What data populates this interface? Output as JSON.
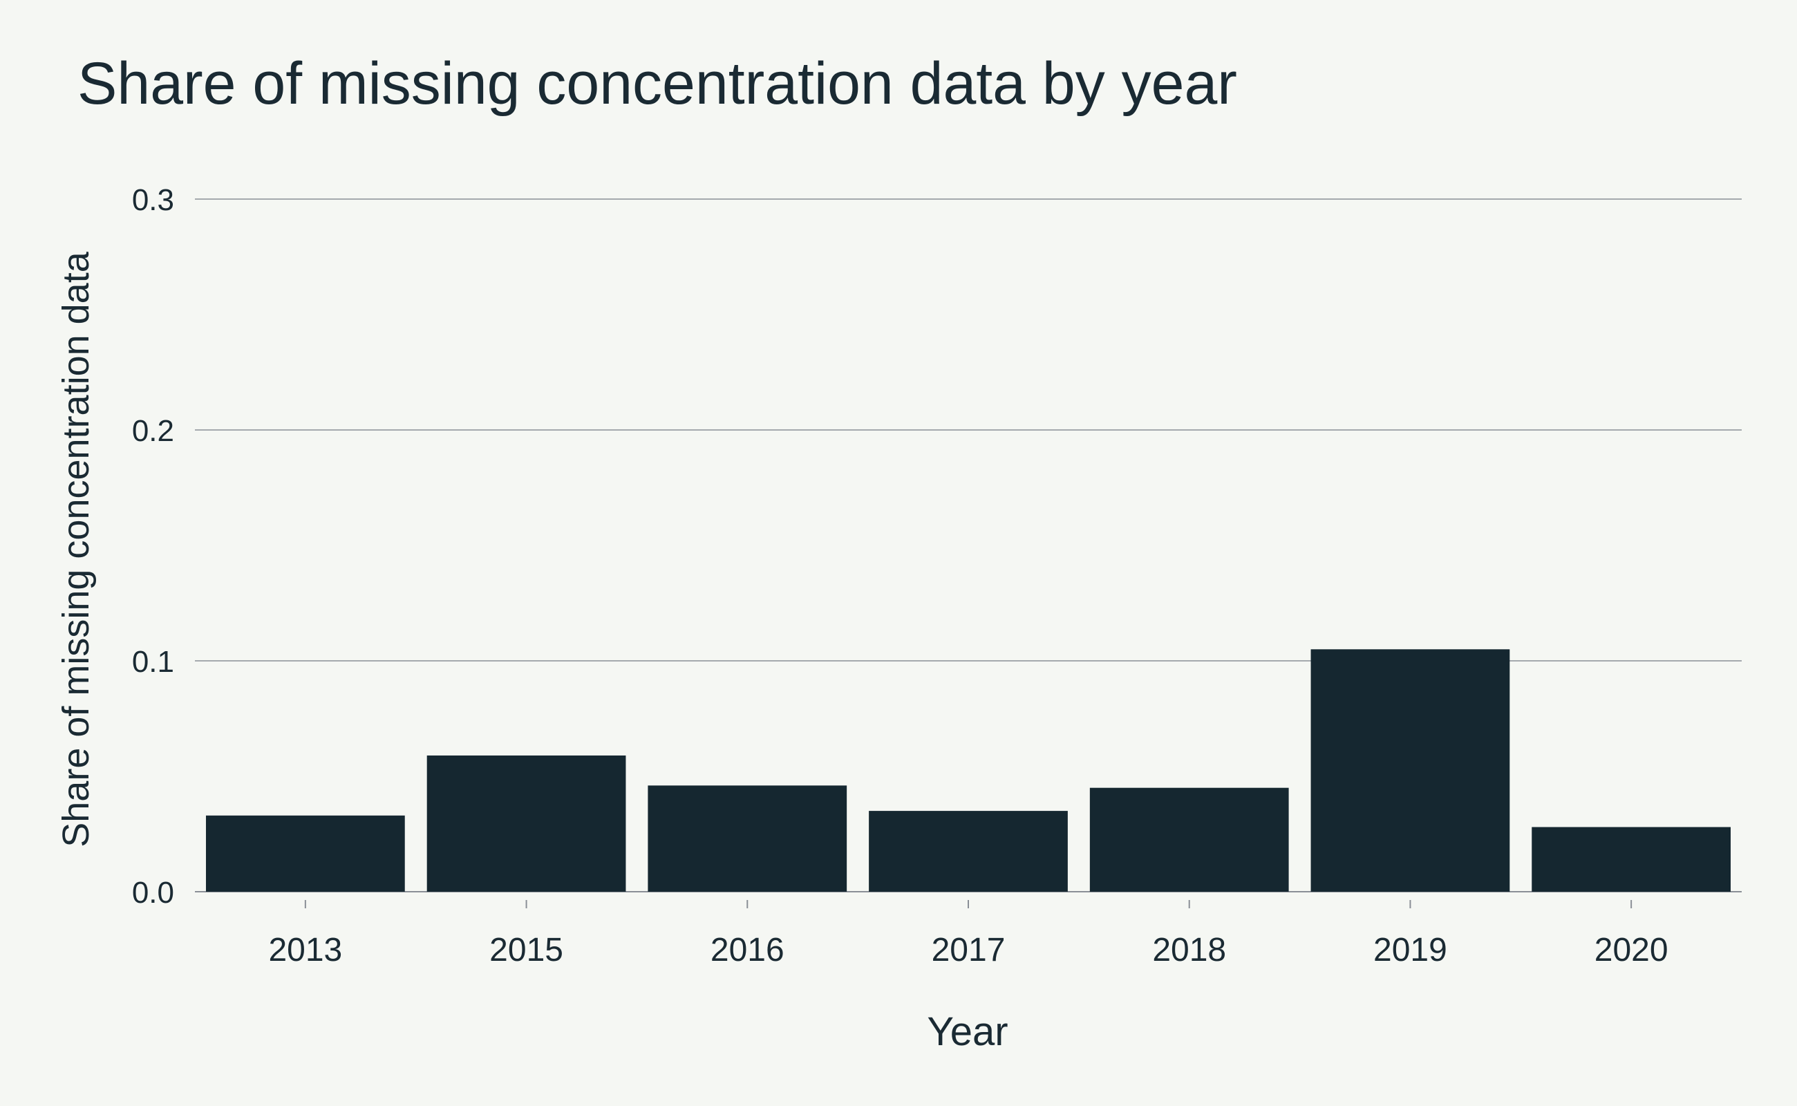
{
  "chart_data": {
    "type": "bar",
    "title": "Share of missing concentration data by year",
    "xlabel": "Year",
    "ylabel": "Share of missing concentration data",
    "categories": [
      "2013",
      "2015",
      "2016",
      "2017",
      "2018",
      "2019",
      "2020"
    ],
    "values": [
      0.033,
      0.059,
      0.046,
      0.035,
      0.045,
      0.105,
      0.028
    ],
    "ylim": [
      0,
      0.3
    ],
    "yticks": [
      0.0,
      0.1,
      0.2,
      0.3
    ],
    "ytick_labels": [
      "0.0",
      "0.1",
      "0.2",
      "0.3"
    ],
    "grid": true,
    "legend": "none",
    "colors": {
      "background": "#f5f7f3",
      "bar": "#152730",
      "text": "#1a2a33",
      "grid": "#8a8f96"
    }
  }
}
